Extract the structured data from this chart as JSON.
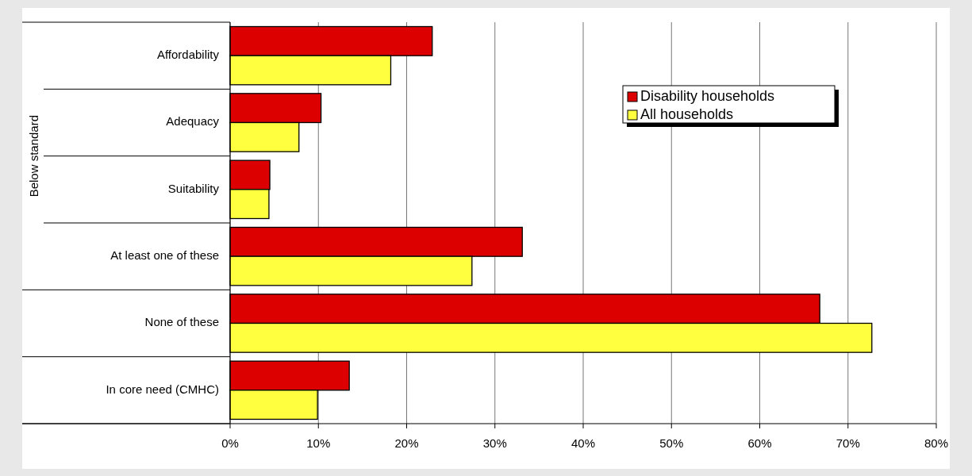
{
  "chart_data": {
    "type": "bar",
    "orientation": "horizontal",
    "categories": [
      "Affordability",
      "Adequacy",
      "Suitability",
      "At least one of these",
      "None of these",
      "In core need (CMHC)"
    ],
    "series": [
      {
        "name": "Disability households",
        "color": "#dd0000",
        "values": [
          22.9,
          10.3,
          4.5,
          33.1,
          66.8,
          13.5
        ]
      },
      {
        "name": "All households",
        "color": "#ffff40",
        "values": [
          18.2,
          7.8,
          4.4,
          27.4,
          72.7,
          9.9
        ]
      }
    ],
    "xlim": [
      0,
      80
    ],
    "xticks": [
      {
        "value": 0,
        "label": "0%"
      },
      {
        "value": 10,
        "label": "10%"
      },
      {
        "value": 20,
        "label": "20%"
      },
      {
        "value": 30,
        "label": "30%"
      },
      {
        "value": 40,
        "label": "40%"
      },
      {
        "value": 50,
        "label": "50%"
      },
      {
        "value": 60,
        "label": "60%"
      },
      {
        "value": 70,
        "label": "70%"
      },
      {
        "value": 80,
        "label": "80%"
      }
    ],
    "grid": "x",
    "legend": "top right",
    "annotations": [
      "Below standard"
    ]
  }
}
